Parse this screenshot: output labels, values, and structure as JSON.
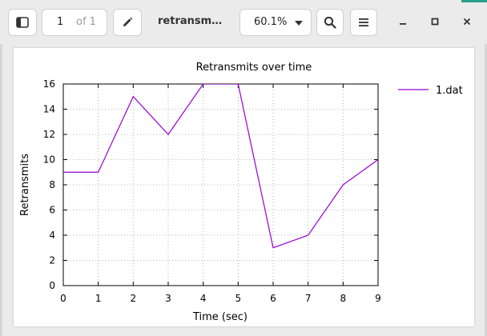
{
  "toolbar": {
    "sidebar_toggle": "sidebar-toggle-icon",
    "page_current": "1",
    "page_of": "of 1",
    "annotate": "pencil-icon",
    "document_title": "retransm…",
    "zoom_level": "60.1%",
    "search": "search-icon",
    "menu": "hamburger-menu-icon",
    "minimize": "minimize-icon",
    "maximize": "maximize-icon",
    "close": "close-icon"
  },
  "colors": {
    "series": "#9400d3",
    "grid": "#a0a0a0",
    "accent": "#2a9d8f"
  },
  "chart_data": {
    "type": "line",
    "title": "Retransmits over time",
    "xlabel": "Time (sec)",
    "ylabel": "Retransmits",
    "xlim": [
      0,
      9
    ],
    "ylim": [
      0,
      16
    ],
    "xticks": [
      0,
      1,
      2,
      3,
      4,
      5,
      6,
      7,
      8,
      9
    ],
    "yticks": [
      0,
      2,
      4,
      6,
      8,
      10,
      12,
      14,
      16
    ],
    "grid": true,
    "legend_position": "top-right",
    "series": [
      {
        "name": "1.dat",
        "x": [
          0,
          1,
          2,
          3,
          4,
          5,
          6,
          7,
          8,
          9
        ],
        "y": [
          9,
          9,
          15,
          12,
          16,
          16,
          3,
          4,
          8,
          10
        ]
      }
    ]
  }
}
